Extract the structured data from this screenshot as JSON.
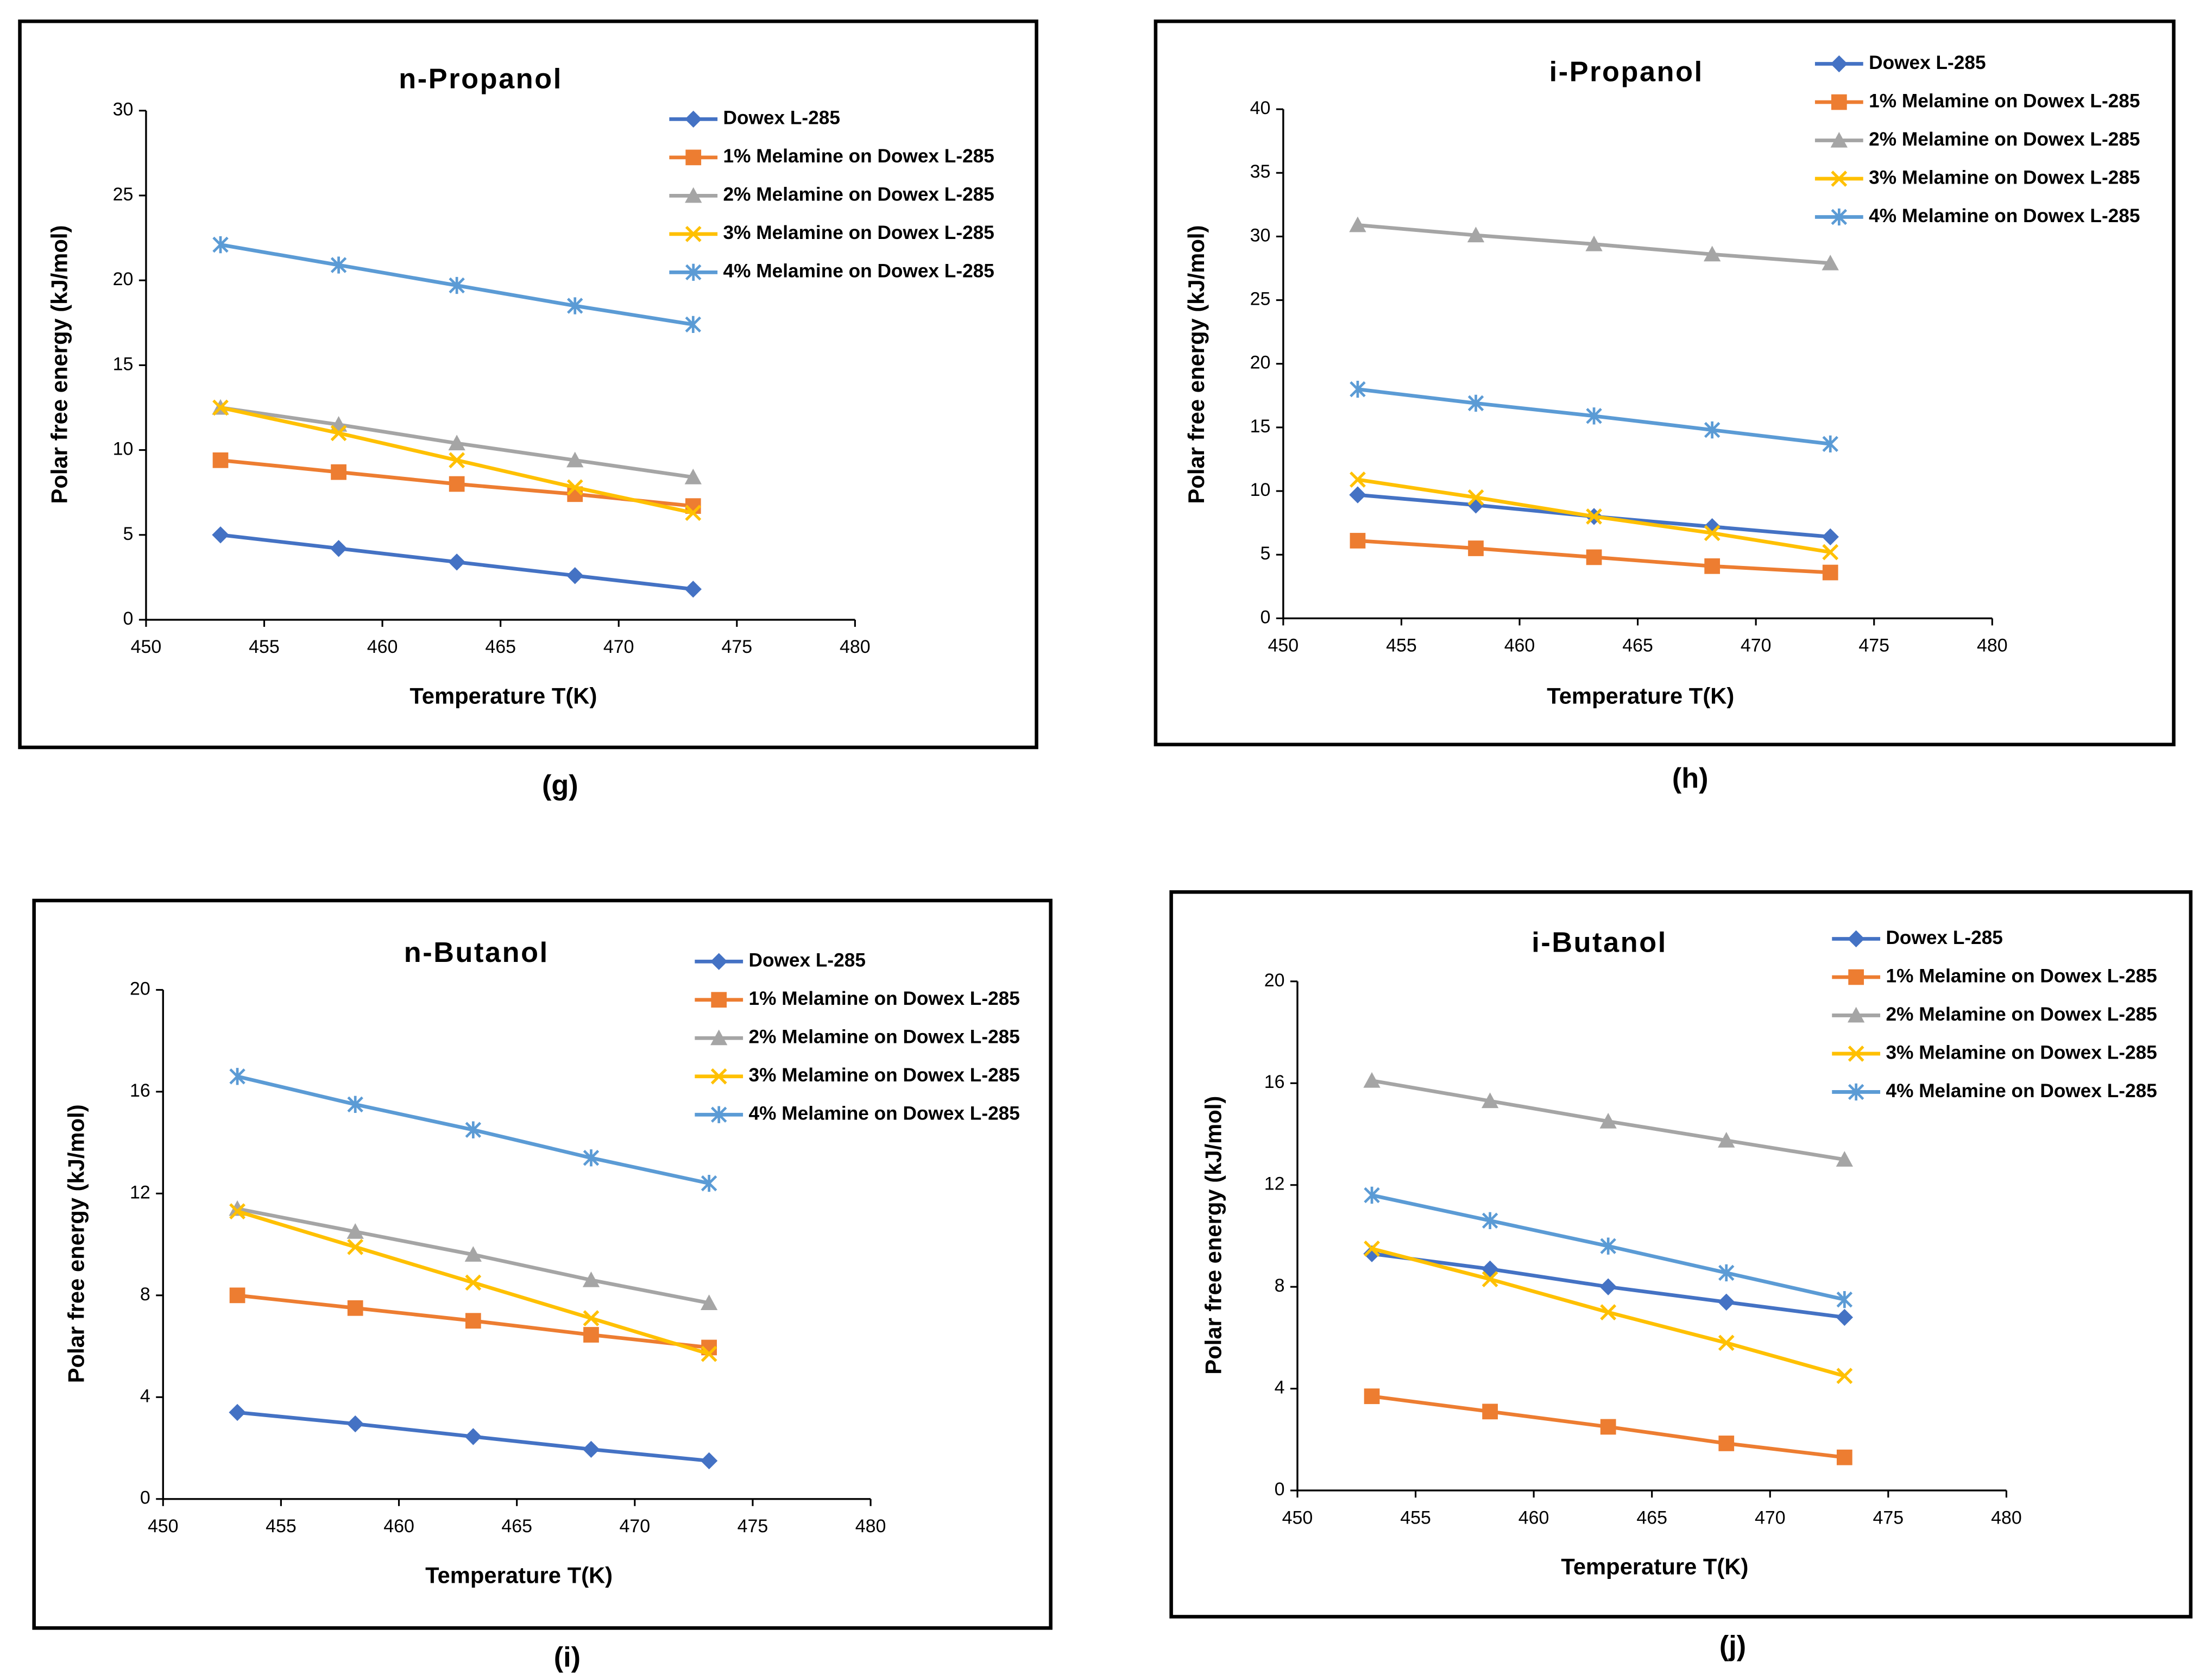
{
  "chart_data": [
    {
      "type": "line",
      "title": "n-Propanol",
      "caption": "(g)",
      "x_label": "Temperature T(K)",
      "y_label": "Polar free energy (kJ/mol)",
      "x": [
        453.15,
        458.15,
        463.15,
        468.15,
        473.15
      ],
      "xlim": [
        450,
        480
      ],
      "xticks": [
        450,
        455,
        460,
        465,
        470,
        475,
        480
      ],
      "ylim": [
        0,
        30
      ],
      "yticks": [
        0,
        5,
        10,
        15,
        20,
        25,
        30
      ],
      "series": [
        {
          "name": "Dowex L-285",
          "color": "#4472c4",
          "marker": "diamond",
          "values": [
            5.0,
            4.2,
            3.4,
            2.6,
            1.8
          ]
        },
        {
          "name": "1% Melamine on Dowex L-285",
          "color": "#ed7d31",
          "marker": "square",
          "values": [
            9.4,
            8.7,
            8.0,
            7.4,
            6.7
          ]
        },
        {
          "name": "2% Melamine on Dowex L-285",
          "color": "#a5a5a5",
          "marker": "triangle",
          "values": [
            12.5,
            11.5,
            10.4,
            9.4,
            8.4
          ]
        },
        {
          "name": "3% Melamine on Dowex L-285",
          "color": "#ffc000",
          "marker": "x",
          "values": [
            12.5,
            11.0,
            9.4,
            7.8,
            6.3
          ]
        },
        {
          "name": "4% Melamine on Dowex L-285",
          "color": "#5b9bd5",
          "marker": "star",
          "values": [
            22.1,
            20.9,
            19.7,
            18.5,
            17.4
          ]
        }
      ]
    },
    {
      "type": "line",
      "title": "i-Propanol",
      "caption": "(h)",
      "x_label": "Temperature T(K)",
      "y_label": "Polar free energy (kJ/mol)",
      "x": [
        453.15,
        458.15,
        463.15,
        468.15,
        473.15
      ],
      "xlim": [
        450,
        480
      ],
      "xticks": [
        450,
        455,
        460,
        465,
        470,
        475,
        480
      ],
      "ylim": [
        0,
        40
      ],
      "yticks": [
        0,
        5,
        10,
        15,
        20,
        25,
        30,
        35,
        40
      ],
      "series": [
        {
          "name": "Dowex L-285",
          "color": "#4472c4",
          "marker": "diamond",
          "values": [
            9.7,
            8.9,
            8.0,
            7.2,
            6.4
          ]
        },
        {
          "name": "1% Melamine on Dowex L-285",
          "color": "#ed7d31",
          "marker": "square",
          "values": [
            6.1,
            5.5,
            4.8,
            4.1,
            3.6
          ]
        },
        {
          "name": "2% Melamine on Dowex L-285",
          "color": "#a5a5a5",
          "marker": "triangle",
          "values": [
            30.9,
            30.1,
            29.4,
            28.6,
            27.9
          ]
        },
        {
          "name": "3% Melamine on Dowex L-285",
          "color": "#ffc000",
          "marker": "x",
          "values": [
            10.9,
            9.5,
            8.0,
            6.7,
            5.2
          ]
        },
        {
          "name": "4% Melamine on Dowex L-285",
          "color": "#5b9bd5",
          "marker": "star",
          "values": [
            18.0,
            16.9,
            15.9,
            14.8,
            13.7
          ]
        }
      ]
    },
    {
      "type": "line",
      "title": "n-Butanol",
      "caption": "(i)",
      "x_label": "Temperature T(K)",
      "y_label": "Polar free energy (kJ/mol)",
      "x": [
        453.15,
        458.15,
        463.15,
        468.15,
        473.15
      ],
      "xlim": [
        450,
        480
      ],
      "xticks": [
        450,
        455,
        460,
        465,
        470,
        475,
        480
      ],
      "ylim": [
        0,
        20
      ],
      "yticks": [
        0,
        4,
        8,
        12,
        16,
        20
      ],
      "series": [
        {
          "name": "Dowex L-285",
          "color": "#4472c4",
          "marker": "diamond",
          "values": [
            3.4,
            2.95,
            2.45,
            1.95,
            1.5
          ]
        },
        {
          "name": "1% Melamine on Dowex L-285",
          "color": "#ed7d31",
          "marker": "square",
          "values": [
            8.0,
            7.5,
            7.0,
            6.45,
            5.95
          ]
        },
        {
          "name": "2% Melamine on Dowex L-285",
          "color": "#a5a5a5",
          "marker": "triangle",
          "values": [
            11.4,
            10.5,
            9.6,
            8.6,
            7.7
          ]
        },
        {
          "name": "3% Melamine on Dowex L-285",
          "color": "#ffc000",
          "marker": "x",
          "values": [
            11.3,
            9.9,
            8.5,
            7.1,
            5.7
          ]
        },
        {
          "name": "4% Melamine on Dowex L-285",
          "color": "#5b9bd5",
          "marker": "star",
          "values": [
            16.6,
            15.5,
            14.5,
            13.4,
            12.4
          ]
        }
      ]
    },
    {
      "type": "line",
      "title": "i-Butanol",
      "caption": "(j)",
      "x_label": "Temperature T(K)",
      "y_label": "Polar free energy (kJ/mol)",
      "x": [
        453.15,
        458.15,
        463.15,
        468.15,
        473.15
      ],
      "xlim": [
        450,
        480
      ],
      "xticks": [
        450,
        455,
        460,
        465,
        470,
        475,
        480
      ],
      "ylim": [
        0,
        20
      ],
      "yticks": [
        0,
        4,
        8,
        12,
        16,
        20
      ],
      "series": [
        {
          "name": "Dowex L-285",
          "color": "#4472c4",
          "marker": "diamond",
          "values": [
            9.3,
            8.7,
            8.0,
            7.4,
            6.8
          ]
        },
        {
          "name": "1% Melamine on Dowex L-285",
          "color": "#ed7d31",
          "marker": "square",
          "values": [
            3.7,
            3.1,
            2.5,
            1.85,
            1.3
          ]
        },
        {
          "name": "2% Melamine on Dowex L-285",
          "color": "#a5a5a5",
          "marker": "triangle",
          "values": [
            16.1,
            15.3,
            14.5,
            13.75,
            13.0
          ]
        },
        {
          "name": "3% Melamine on Dowex L-285",
          "color": "#ffc000",
          "marker": "x",
          "values": [
            9.5,
            8.3,
            7.0,
            5.8,
            4.5
          ]
        },
        {
          "name": "4% Melamine on Dowex L-285",
          "color": "#5b9bd5",
          "marker": "star",
          "values": [
            11.6,
            10.6,
            9.6,
            8.55,
            7.5
          ]
        }
      ]
    }
  ]
}
